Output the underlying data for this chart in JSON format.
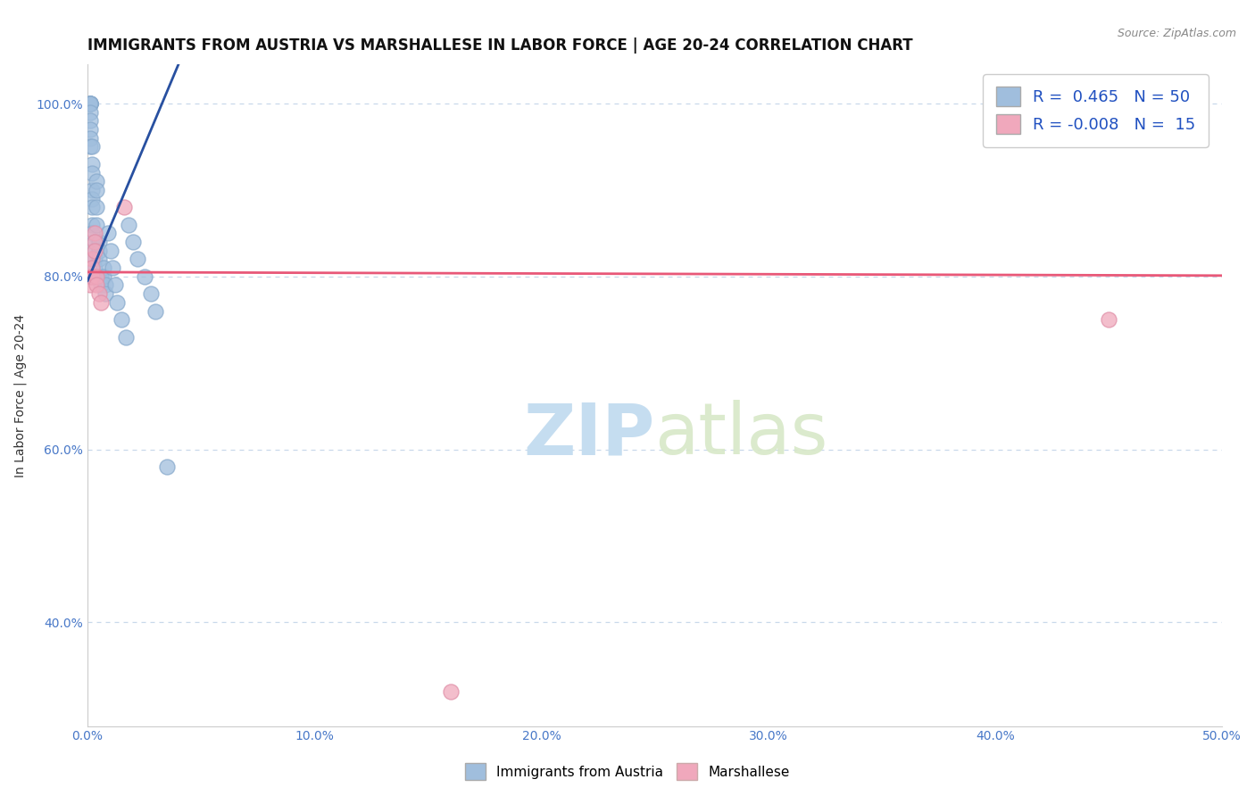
{
  "title": "IMMIGRANTS FROM AUSTRIA VS MARSHALLESE IN LABOR FORCE | AGE 20-24 CORRELATION CHART",
  "source_text": "Source: ZipAtlas.com",
  "xlabel": "",
  "ylabel": "In Labor Force | Age 20-24",
  "xlim": [
    0.0,
    0.5
  ],
  "ylim": [
    0.28,
    1.045
  ],
  "xticks": [
    0.0,
    0.1,
    0.2,
    0.3,
    0.4,
    0.5
  ],
  "xticklabels": [
    "0.0%",
    "10.0%",
    "20.0%",
    "30.0%",
    "40.0%",
    "50.0%"
  ],
  "yticks": [
    0.4,
    0.6,
    0.8,
    1.0
  ],
  "yticklabels": [
    "40.0%",
    "60.0%",
    "80.0%",
    "100.0%"
  ],
  "grid_color": "#c8d8ea",
  "watermark_zip": "ZIP",
  "watermark_atlas": "atlas",
  "austria_R": 0.465,
  "austria_N": 50,
  "marshallese_R": -0.008,
  "marshallese_N": 15,
  "austria_color": "#a0bedd",
  "marshallese_color": "#f0a8bc",
  "austria_edge_color": "#88aacc",
  "marshallese_edge_color": "#e090a8",
  "austria_trend_color": "#2850a0",
  "marshallese_trend_color": "#e85878",
  "legend_austria_label": "Immigrants from Austria",
  "legend_marshallese_label": "Marshallese",
  "austria_x": [
    0.001,
    0.001,
    0.001,
    0.001,
    0.001,
    0.001,
    0.001,
    0.001,
    0.001,
    0.001,
    0.002,
    0.002,
    0.002,
    0.002,
    0.002,
    0.002,
    0.002,
    0.002,
    0.003,
    0.003,
    0.003,
    0.003,
    0.003,
    0.004,
    0.004,
    0.004,
    0.004,
    0.005,
    0.005,
    0.005,
    0.006,
    0.006,
    0.007,
    0.007,
    0.008,
    0.008,
    0.009,
    0.01,
    0.011,
    0.012,
    0.013,
    0.015,
    0.017,
    0.018,
    0.02,
    0.022,
    0.025,
    0.028,
    0.03,
    0.035
  ],
  "austria_y": [
    1.0,
    1.0,
    1.0,
    1.0,
    1.0,
    0.99,
    0.98,
    0.97,
    0.96,
    0.95,
    0.95,
    0.93,
    0.92,
    0.9,
    0.89,
    0.88,
    0.86,
    0.85,
    0.84,
    0.83,
    0.82,
    0.81,
    0.8,
    0.91,
    0.9,
    0.88,
    0.86,
    0.84,
    0.83,
    0.82,
    0.8,
    0.79,
    0.81,
    0.8,
    0.79,
    0.78,
    0.85,
    0.83,
    0.81,
    0.79,
    0.77,
    0.75,
    0.73,
    0.86,
    0.84,
    0.82,
    0.8,
    0.78,
    0.76,
    0.58
  ],
  "marshallese_x": [
    0.001,
    0.001,
    0.002,
    0.002,
    0.002,
    0.003,
    0.003,
    0.003,
    0.004,
    0.004,
    0.005,
    0.006,
    0.016,
    0.16,
    0.45
  ],
  "marshallese_y": [
    0.8,
    0.79,
    0.82,
    0.81,
    0.8,
    0.85,
    0.84,
    0.83,
    0.8,
    0.79,
    0.78,
    0.77,
    0.88,
    0.32,
    0.75
  ],
  "austria_trendline_x": [
    0.0,
    0.04
  ],
  "austria_trendline_y": [
    0.795,
    1.045
  ],
  "marshallese_trendline_x": [
    0.0,
    0.5
  ],
  "marshallese_trendline_y": [
    0.805,
    0.801
  ],
  "background_color": "#ffffff",
  "title_fontsize": 12,
  "axis_label_fontsize": 10,
  "tick_fontsize": 10,
  "legend_fontsize": 13,
  "tick_color": "#4878c8"
}
